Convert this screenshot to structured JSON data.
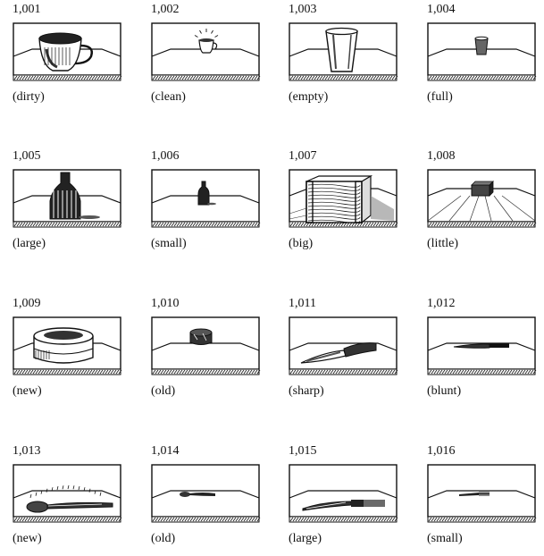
{
  "items": [
    {
      "number": "1,001",
      "caption": "(dirty)",
      "object": "cup-dirty"
    },
    {
      "number": "1,002",
      "caption": "(clean)",
      "object": "cup-clean"
    },
    {
      "number": "1,003",
      "caption": "(empty)",
      "object": "glass-empty"
    },
    {
      "number": "1,004",
      "caption": "(full)",
      "object": "glass-full"
    },
    {
      "number": "1,005",
      "caption": "(large)",
      "object": "bottle-large"
    },
    {
      "number": "1,006",
      "caption": "(small)",
      "object": "bottle-small"
    },
    {
      "number": "1,007",
      "caption": "(big)",
      "object": "crate-big"
    },
    {
      "number": "1,008",
      "caption": "(little)",
      "object": "crate-little"
    },
    {
      "number": "1,009",
      "caption": "(new)",
      "object": "tin-new"
    },
    {
      "number": "1,010",
      "caption": "(old)",
      "object": "tin-old"
    },
    {
      "number": "1,011",
      "caption": "(sharp)",
      "object": "knife-sharp"
    },
    {
      "number": "1,012",
      "caption": "(blunt)",
      "object": "knife-blunt"
    },
    {
      "number": "1,013",
      "caption": "(new)",
      "object": "spoon-new"
    },
    {
      "number": "1,014",
      "caption": "(old)",
      "object": "spoon-old"
    },
    {
      "number": "1,015",
      "caption": "(large)",
      "object": "fork-large"
    },
    {
      "number": "1,016",
      "caption": "(small)",
      "object": "fork-small"
    }
  ]
}
